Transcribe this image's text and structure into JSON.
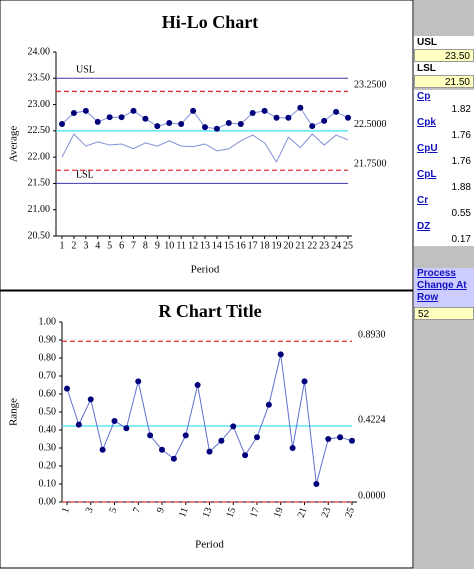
{
  "chart_data": [
    {
      "type": "line",
      "title": "Hi-Lo Chart",
      "x_label": "Period",
      "y_label": "Average",
      "x": [
        1,
        2,
        3,
        4,
        5,
        6,
        7,
        8,
        9,
        10,
        11,
        12,
        13,
        14,
        15,
        16,
        17,
        18,
        19,
        20,
        21,
        22,
        23,
        24,
        25
      ],
      "series": [
        {
          "color": "#8090d8",
          "marker_color": "#00007a",
          "markers": true,
          "values": [
            22.63,
            22.84,
            22.88,
            22.67,
            22.76,
            22.76,
            22.88,
            22.73,
            22.59,
            22.65,
            22.63,
            22.88,
            22.57,
            22.54,
            22.65,
            22.63,
            22.84,
            22.88,
            22.75,
            22.75,
            22.94,
            22.59,
            22.69,
            22.86,
            22.75
          ]
        },
        {
          "color": "#8090d8",
          "markers": false,
          "values": [
            22.0,
            22.44,
            22.21,
            22.29,
            22.23,
            22.25,
            22.16,
            22.27,
            22.21,
            22.31,
            22.21,
            22.2,
            22.25,
            22.12,
            22.16,
            22.31,
            22.42,
            22.27,
            21.91,
            22.38,
            22.18,
            22.44,
            22.23,
            22.42,
            22.33
          ]
        }
      ],
      "spec_limits": [
        {
          "label": "USL",
          "value": 23.5,
          "color": "#3838a8"
        },
        {
          "label": "LSL",
          "value": 21.5,
          "color": "#3838a8"
        }
      ],
      "control_limits": [
        {
          "value": 23.25,
          "label": "23.2500",
          "color": "#e03030",
          "dashed": true
        },
        {
          "value": 22.5,
          "label": "22.5000",
          "color": "#40e0f0",
          "dashed": false
        },
        {
          "value": 21.75,
          "label": "21.7500",
          "color": "#e03030",
          "dashed": true
        }
      ],
      "xlim": [
        1,
        25
      ],
      "xticks": [
        1,
        2,
        3,
        4,
        5,
        6,
        7,
        8,
        9,
        10,
        11,
        12,
        13,
        14,
        15,
        16,
        17,
        18,
        19,
        20,
        21,
        22,
        23,
        24,
        25
      ],
      "xtick_rotation": 0,
      "ylim": [
        20.5,
        24
      ],
      "yticks": [
        {
          "value": 20.5,
          "label": "20.50"
        },
        {
          "value": 21,
          "label": "21.00"
        },
        {
          "value": 21.5,
          "label": "21.50"
        },
        {
          "value": 22,
          "label": "22.00"
        },
        {
          "value": 22.5,
          "label": "22.50"
        },
        {
          "value": 23,
          "label": "23.00"
        },
        {
          "value": 23.5,
          "label": "23.50"
        },
        {
          "value": 24,
          "label": "24.00"
        }
      ]
    },
    {
      "type": "line",
      "title": "R Chart Title",
      "x_label": "Period",
      "y_label": "Range",
      "x": [
        1,
        2,
        3,
        4,
        5,
        6,
        7,
        8,
        9,
        10,
        11,
        12,
        13,
        14,
        15,
        16,
        17,
        18,
        19,
        20,
        21,
        22,
        23,
        24,
        25
      ],
      "series": [
        {
          "color": "#6070d0",
          "marker_color": "#00007a",
          "markers": true,
          "values": [
            0.63,
            0.43,
            0.57,
            0.29,
            0.45,
            0.41,
            0.67,
            0.37,
            0.29,
            0.24,
            0.37,
            0.65,
            0.28,
            0.34,
            0.42,
            0.26,
            0.36,
            0.54,
            0.82,
            0.3,
            0.67,
            0.1,
            0.35,
            0.36,
            0.34
          ]
        }
      ],
      "spec_limits": [],
      "control_limits": [
        {
          "value": 0.893,
          "label": "0.8930",
          "color": "#e03030",
          "dashed": true
        },
        {
          "value": 0.4224,
          "label": "0.4224",
          "color": "#40e0f0",
          "dashed": false
        },
        {
          "value": 0,
          "label": "0.0000",
          "color": "#e03030",
          "dashed": true
        }
      ],
      "xlim": [
        1,
        25
      ],
      "xticks": [
        1,
        3,
        5,
        7,
        9,
        11,
        13,
        15,
        17,
        19,
        21,
        23,
        25
      ],
      "xtick_rotation": -70,
      "ylim": [
        0,
        1
      ],
      "yticks": [
        {
          "value": 0,
          "label": "0.00"
        },
        {
          "value": 0.1,
          "label": "0.10"
        },
        {
          "value": 0.2,
          "label": "0.20"
        },
        {
          "value": 0.3,
          "label": "0.30"
        },
        {
          "value": 0.4,
          "label": "0.40"
        },
        {
          "value": 0.5,
          "label": "0.50"
        },
        {
          "value": 0.6,
          "label": "0.60"
        },
        {
          "value": 0.7,
          "label": "0.70"
        },
        {
          "value": 0.8,
          "label": "0.80"
        },
        {
          "value": 0.9,
          "label": "0.90"
        },
        {
          "value": 1,
          "label": "1.00"
        }
      ]
    }
  ],
  "side_panel": {
    "usl_label": "USL",
    "usl_value": "23.50",
    "lsl_label": "LSL",
    "lsl_value": "21.50",
    "indices": [
      {
        "name": "Cp",
        "value": "1.82"
      },
      {
        "name": "Cpk",
        "value": "1.76"
      },
      {
        "name": "CpU",
        "value": "1.76"
      },
      {
        "name": "CpL",
        "value": "1.88"
      },
      {
        "name": "Cr",
        "value": "0.55"
      },
      {
        "name": "DZ",
        "value": "0.17"
      }
    ],
    "process_change_label": "Process Change At Row",
    "process_change_row": "52"
  }
}
